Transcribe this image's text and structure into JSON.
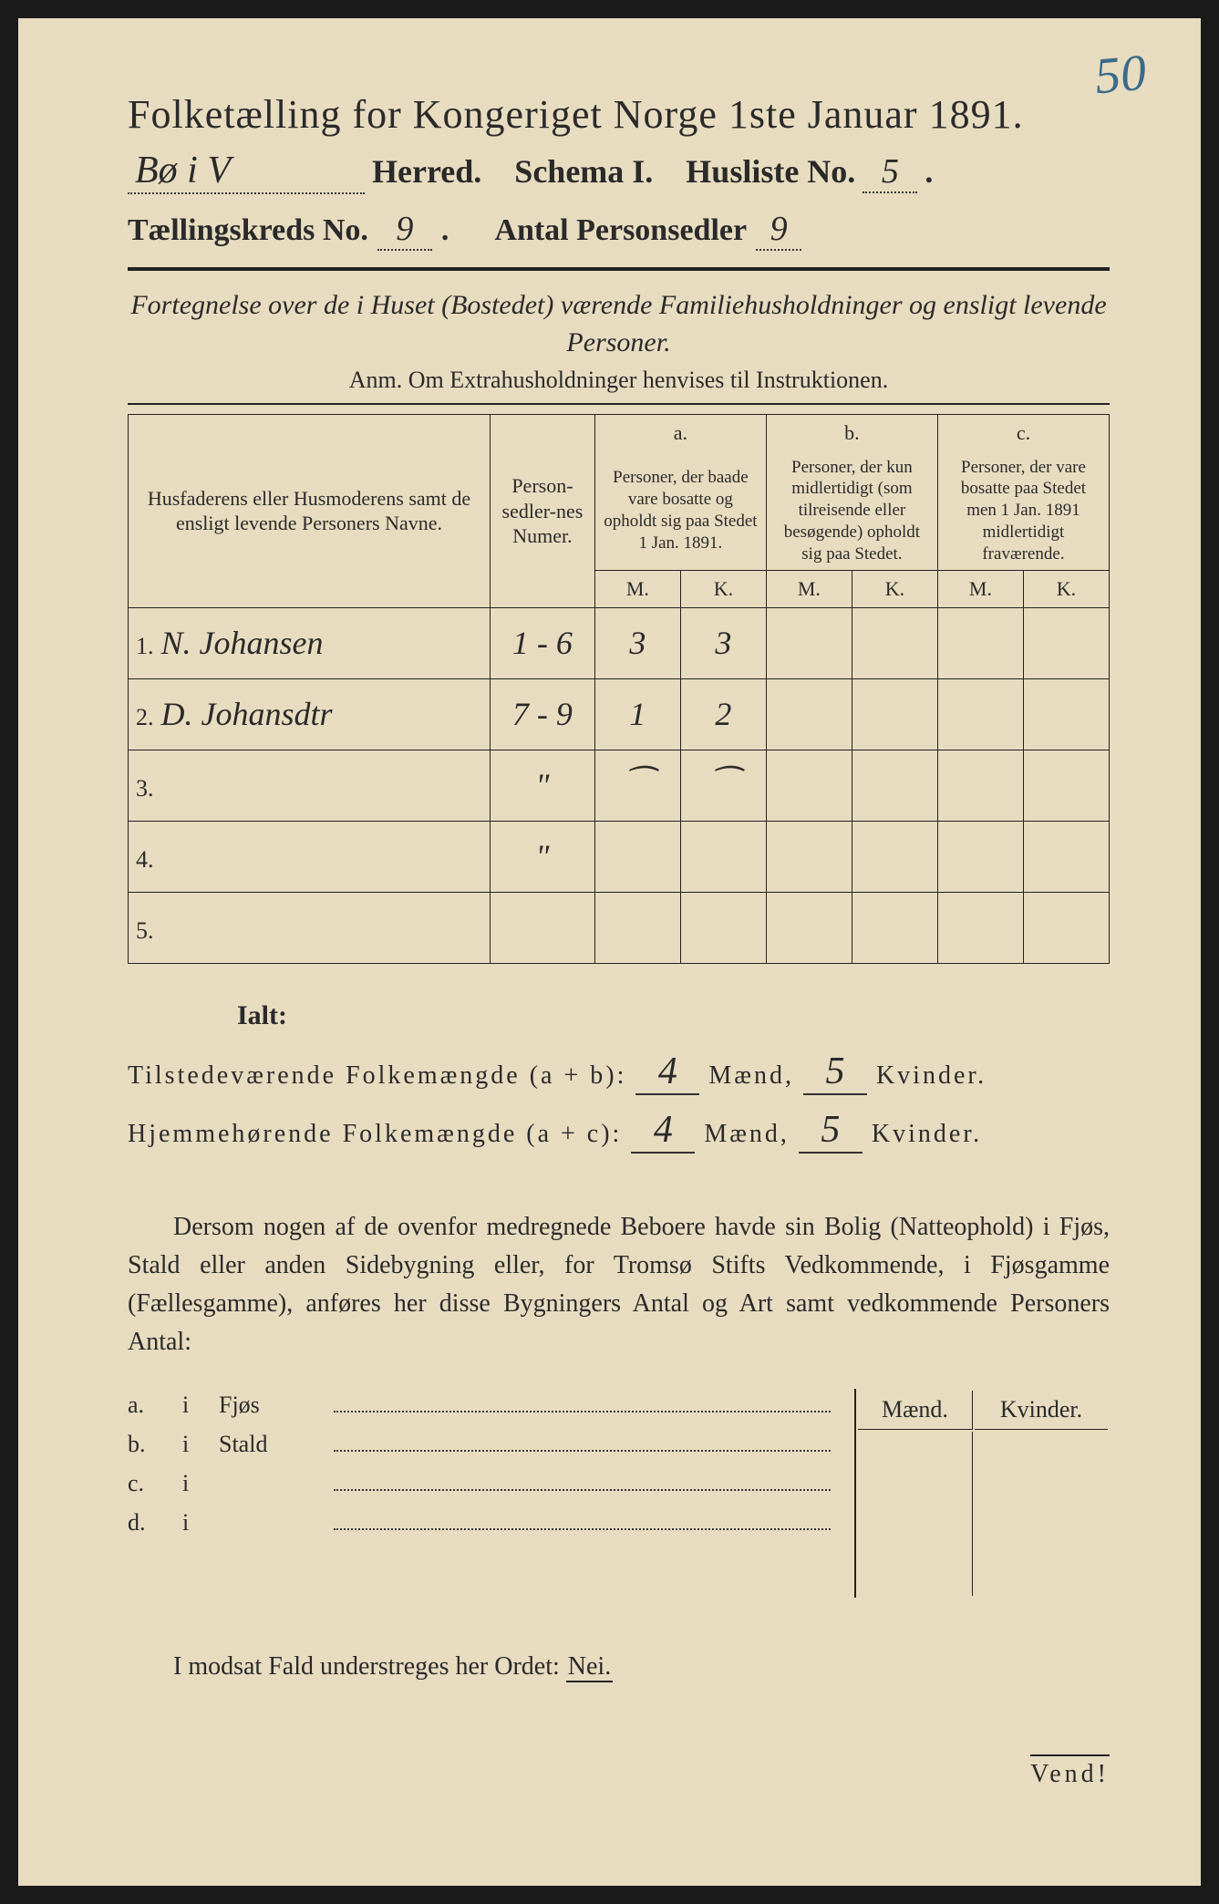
{
  "corner_mark": "50",
  "header": {
    "title": "Folketælling for Kongeriget Norge 1ste Januar 1891.",
    "herred_value": "Bø i V",
    "herred_label": "Herred.",
    "schema_label": "Schema I.",
    "husliste_label": "Husliste No.",
    "husliste_value": "5",
    "kreds_label": "Tællingskreds No.",
    "kreds_value": "9",
    "antal_label": "Antal Personsedler",
    "antal_value": "9"
  },
  "subtitle": "Fortegnelse over de i Huset (Bostedet) værende Familiehusholdninger og ensligt levende Personer.",
  "anm": "Anm. Om Extrahusholdninger henvises til Instruktionen.",
  "table": {
    "col_name": "Husfaderens eller Husmoderens samt de ensligt levende Personers Navne.",
    "col_numer": "Person-sedler-nes Numer.",
    "col_a_label": "a.",
    "col_a": "Personer, der baade vare bosatte og opholdt sig paa Stedet 1 Jan. 1891.",
    "col_b_label": "b.",
    "col_b": "Personer, der kun midlertidigt (som tilreisende eller besøgende) opholdt sig paa Stedet.",
    "col_c_label": "c.",
    "col_c": "Personer, der vare bosatte paa Stedet men 1 Jan. 1891 midlertidigt fraværende.",
    "M": "M.",
    "K": "K.",
    "rows": [
      {
        "n": "1.",
        "name": "N. Johansen",
        "numer": "1 - 6",
        "aM": "3",
        "aK": "3",
        "bM": "",
        "bK": "",
        "cM": "",
        "cK": ""
      },
      {
        "n": "2.",
        "name": "D. Johansdtr",
        "numer": "7 - 9",
        "aM": "1",
        "aK": "2",
        "bM": "",
        "bK": "",
        "cM": "",
        "cK": ""
      },
      {
        "n": "3.",
        "name": "",
        "numer": "\"",
        "aM": "⁀",
        "aK": "⁀",
        "bM": "",
        "bK": "",
        "cM": "",
        "cK": ""
      },
      {
        "n": "4.",
        "name": "",
        "numer": "\"",
        "aM": "",
        "aK": "",
        "bM": "",
        "bK": "",
        "cM": "",
        "cK": ""
      },
      {
        "n": "5.",
        "name": "",
        "numer": "",
        "aM": "",
        "aK": "",
        "bM": "",
        "bK": "",
        "cM": "",
        "cK": ""
      }
    ]
  },
  "totals": {
    "ialt": "Ialt:",
    "line1_label": "Tilstedeværende Folkemængde (a + b):",
    "line1_m": "4",
    "line1_k": "5",
    "line2_label": "Hjemmehørende Folkemængde (a + c):",
    "line2_m": "4",
    "line2_k": "5",
    "maend": "Mænd,",
    "kvinder": "Kvinder."
  },
  "paragraph": "Dersom nogen af de ovenfor medregnede Beboere havde sin Bolig (Natteophold) i Fjøs, Stald eller anden Sidebygning eller, for Tromsø Stifts Vedkommende, i Fjøsgamme (Fællesgamme), anføres her disse Bygningers Antal og Art samt vedkommende Personers Antal:",
  "buildings": {
    "maend": "Mænd.",
    "kvinder": "Kvinder.",
    "rows": [
      {
        "label": "a.",
        "i": "i",
        "name": "Fjøs"
      },
      {
        "label": "b.",
        "i": "i",
        "name": "Stald"
      },
      {
        "label": "c.",
        "i": "i",
        "name": ""
      },
      {
        "label": "d.",
        "i": "i",
        "name": ""
      }
    ]
  },
  "nei_line": {
    "prefix": "I modsat Fald understreges her Ordet:",
    "nei": "Nei."
  },
  "vend": "Vend!",
  "colors": {
    "paper": "#e8dcc0",
    "ink": "#2a2a2a",
    "pencil_blue": "#3a6b8a"
  }
}
